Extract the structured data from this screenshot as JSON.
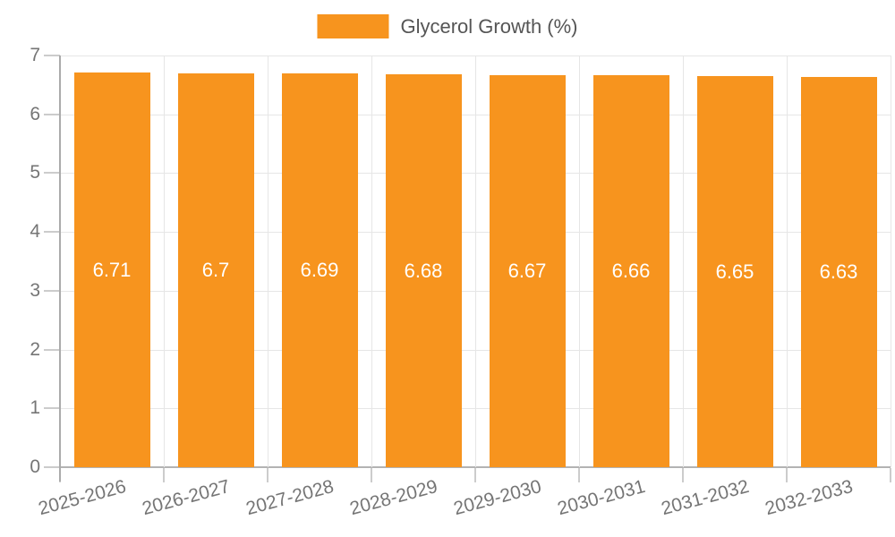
{
  "legend": {
    "label": "Glycerol Growth (%)",
    "swatch_color": "#f7941e"
  },
  "chart_data": {
    "type": "bar",
    "title": "Glycerol Growth (%)",
    "categories": [
      "2025-2026",
      "2026-2027",
      "2027-2028",
      "2028-2029",
      "2029-2030",
      "2030-2031",
      "2031-2032",
      "2032-2033"
    ],
    "series": [
      {
        "name": "Glycerol Growth (%)",
        "values": [
          6.71,
          6.7,
          6.69,
          6.68,
          6.67,
          6.66,
          6.65,
          6.63
        ],
        "value_labels": [
          "6.71",
          "6.7",
          "6.69",
          "6.68",
          "6.67",
          "6.66",
          "6.65",
          "6.63"
        ],
        "color": "#f7941e"
      }
    ],
    "xlabel": "",
    "ylabel": "",
    "ylim": [
      0,
      7
    ],
    "yticks": [
      0,
      1,
      2,
      3,
      4,
      5,
      6,
      7
    ],
    "grid": true,
    "legend_position": "top-center",
    "value_label_color": "#ffffff",
    "axis_label_color": "#757575",
    "grid_color": "#e6e6e6"
  }
}
